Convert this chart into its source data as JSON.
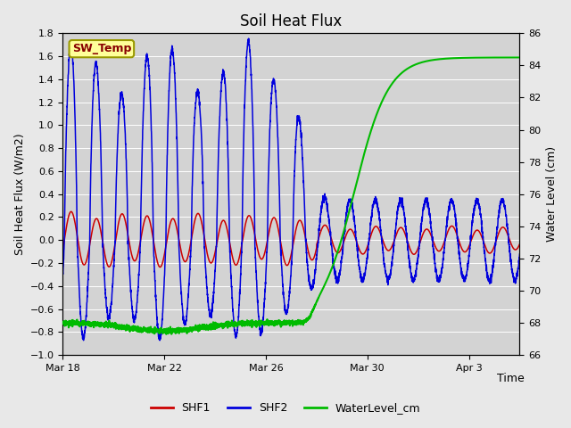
{
  "title": "Soil Heat Flux",
  "xlabel": "Time",
  "ylabel_left": "Soil Heat Flux (W/m2)",
  "ylabel_right": "Water Level (cm)",
  "ylim_left": [
    -1.0,
    1.8
  ],
  "ylim_right": [
    66,
    86
  ],
  "fig_bg_color": "#e8e8e8",
  "plot_bg_color": "#d3d3d3",
  "grid_color": "#ffffff",
  "shf1_color": "#cc0000",
  "shf2_color": "#0000dd",
  "water_color": "#00bb00",
  "annotation_label": "SW_Temp",
  "annotation_box_color": "#ffff99",
  "annotation_border_color": "#999900",
  "annotation_text_color": "#880000",
  "x_tick_labels": [
    "Mar 18",
    "Mar 22",
    "Mar 26",
    "Mar 30",
    "Apr 3"
  ],
  "x_tick_positions": [
    0,
    4,
    8,
    12,
    16
  ],
  "yticks_left": [
    -1.0,
    -0.8,
    -0.6,
    -0.4,
    -0.2,
    0.0,
    0.2,
    0.4,
    0.6,
    0.8,
    1.0,
    1.2,
    1.4,
    1.6,
    1.8
  ],
  "yticks_right": [
    66,
    68,
    70,
    72,
    74,
    76,
    78,
    80,
    82,
    84,
    86
  ],
  "legend_labels": [
    "SHF1",
    "SHF2",
    "WaterLevel_cm"
  ],
  "total_days": 18,
  "figsize": [
    6.4,
    4.8
  ],
  "dpi": 100
}
